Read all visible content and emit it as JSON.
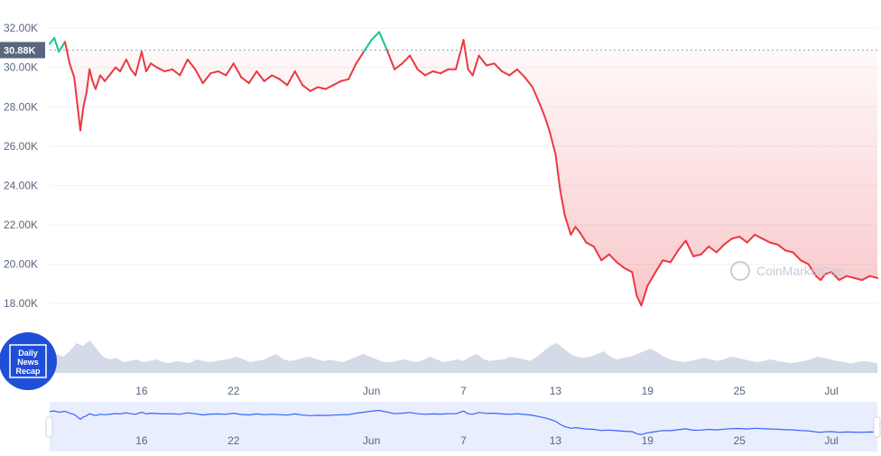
{
  "chart_data": {
    "type": "line",
    "title": "",
    "xlabel": "",
    "ylabel": "",
    "current_price_label": "30.88K",
    "reference_value": 30880,
    "ylim": [
      17000,
      32600
    ],
    "y_ticks": [
      "32.00K",
      "30.00K",
      "28.00K",
      "26.00K",
      "24.00K",
      "22.00K",
      "20.00K",
      "18.00K"
    ],
    "y_tick_values": [
      32000,
      30000,
      28000,
      26000,
      24000,
      22000,
      20000,
      18000
    ],
    "x_ticks": [
      "16",
      "22",
      "Jun",
      "7",
      "13",
      "19",
      "25",
      "Jul"
    ],
    "x_tick_days": [
      6,
      12,
      21,
      27,
      33,
      39,
      45,
      51
    ],
    "x_range_days": [
      0,
      54
    ],
    "series": [
      {
        "x": [
          0,
          0.3,
          0.6,
          1,
          1.3,
          1.6,
          2,
          2.2,
          2.4,
          2.6,
          2.8,
          3,
          3.3,
          3.6,
          4,
          4.3,
          4.6,
          5,
          5.3,
          5.6,
          6,
          6.3,
          6.6,
          7,
          7.5,
          8,
          8.5,
          9,
          9.5,
          10,
          10.5,
          11,
          11.5,
          12,
          12.5,
          13,
          13.5,
          14,
          14.5,
          15,
          15.5,
          16,
          16.5,
          17,
          17.5,
          18,
          18.5,
          19,
          19.5,
          20,
          20.5,
          21,
          21.5,
          22,
          22.5,
          23,
          23.5,
          24,
          24.5,
          25,
          25.5,
          26,
          26.5,
          27,
          27.3,
          27.6,
          28,
          28.5,
          29,
          29.5,
          30,
          30.5,
          31,
          31.5,
          32,
          32.3,
          32.6,
          33,
          33.3,
          33.6,
          34,
          34.3,
          34.6,
          35,
          35.5,
          36,
          36.5,
          37,
          37.5,
          38,
          38.3,
          38.6,
          39,
          39.3,
          39.6,
          40,
          40.5,
          41,
          41.5,
          42,
          42.5,
          43,
          43.5,
          44,
          44.5,
          45,
          45.5,
          46,
          46.5,
          47,
          47.5,
          48,
          48.5,
          49,
          49.5,
          50,
          50.3,
          50.6,
          51,
          51.5,
          52,
          52.5,
          53,
          53.5,
          54
        ],
        "y": [
          31200,
          31500,
          30800,
          31300,
          30200,
          29500,
          26800,
          28000,
          28700,
          29900,
          29300,
          28900,
          29600,
          29300,
          29700,
          30000,
          29800,
          30400,
          29900,
          29600,
          30800,
          29800,
          30200,
          30000,
          29800,
          29900,
          29600,
          30400,
          29900,
          29200,
          29700,
          29800,
          29600,
          30200,
          29500,
          29200,
          29800,
          29300,
          29600,
          29400,
          29100,
          29800,
          29100,
          28800,
          29000,
          28900,
          29100,
          29300,
          29400,
          30200,
          30800,
          31400,
          31800,
          30900,
          29900,
          30200,
          30600,
          29900,
          29600,
          29800,
          29700,
          29900,
          29900,
          31400,
          29900,
          29600,
          30600,
          30100,
          30200,
          29800,
          29600,
          29900,
          29500,
          29000,
          28100,
          27500,
          26800,
          25600,
          23800,
          22500,
          21500,
          21900,
          21600,
          21100,
          20900,
          20200,
          20500,
          20100,
          19800,
          19600,
          18400,
          17900,
          18900,
          19300,
          19700,
          20200,
          20100,
          20700,
          21200,
          20400,
          20500,
          20900,
          20600,
          21000,
          21300,
          21400,
          21100,
          21500,
          21300,
          21100,
          21000,
          20700,
          20600,
          20200,
          20000,
          19400,
          19200,
          19500,
          19600,
          19200,
          19400,
          19300,
          19200,
          19400,
          19300
        ]
      }
    ],
    "volume": [
      0.25,
      0.35,
      0.3,
      0.4,
      0.55,
      0.5,
      0.6,
      0.45,
      0.3,
      0.25,
      0.28,
      0.2,
      0.22,
      0.25,
      0.2,
      0.22,
      0.25,
      0.2,
      0.18,
      0.22,
      0.2,
      0.18,
      0.25,
      0.22,
      0.2,
      0.22,
      0.24,
      0.26,
      0.3,
      0.25,
      0.2,
      0.22,
      0.24,
      0.3,
      0.35,
      0.25,
      0.22,
      0.24,
      0.28,
      0.3,
      0.25,
      0.22,
      0.24,
      0.22,
      0.2,
      0.25,
      0.3,
      0.35,
      0.3,
      0.25,
      0.2,
      0.2,
      0.22,
      0.25,
      0.22,
      0.2,
      0.24,
      0.3,
      0.25,
      0.2,
      0.22,
      0.25,
      0.22,
      0.3,
      0.35,
      0.25,
      0.22,
      0.24,
      0.25,
      0.3,
      0.28,
      0.25,
      0.22,
      0.3,
      0.4,
      0.5,
      0.55,
      0.45,
      0.35,
      0.3,
      0.28,
      0.3,
      0.35,
      0.4,
      0.3,
      0.25,
      0.28,
      0.3,
      0.35,
      0.4,
      0.45,
      0.38,
      0.3,
      0.25,
      0.22,
      0.2,
      0.22,
      0.25,
      0.28,
      0.25,
      0.22,
      0.25,
      0.3,
      0.28,
      0.25,
      0.22,
      0.2,
      0.22,
      0.25,
      0.22,
      0.2,
      0.18,
      0.2,
      0.22,
      0.25,
      0.3,
      0.28,
      0.25,
      0.22,
      0.2,
      0.18,
      0.2,
      0.22,
      0.2,
      0.18
    ],
    "up_color": "#16c784",
    "down_color": "#ea3943",
    "volume_color": "#cfd6e4",
    "navigator_color": "#3861fb",
    "grid": true,
    "watermark": "CoinMarketCap",
    "badge_lines": [
      "Daily",
      "News",
      "Recap"
    ]
  }
}
